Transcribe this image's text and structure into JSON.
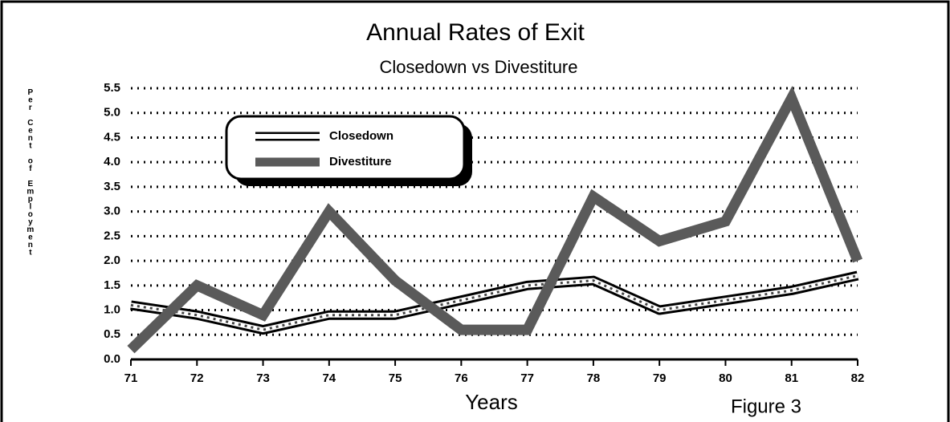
{
  "chart_data": {
    "type": "line",
    "title": "Annual Rates of Exit",
    "subtitle": "Closedown vs Divestiture",
    "y_label": "Per Cent of Employment",
    "x_label": "Years",
    "annotation": "Figure 3",
    "categories": [
      "71",
      "72",
      "73",
      "74",
      "75",
      "76",
      "77",
      "78",
      "79",
      "80",
      "81",
      "82"
    ],
    "series": [
      {
        "name": "Closedown",
        "color": "#ffffff",
        "values": [
          1.1,
          0.9,
          0.6,
          0.9,
          0.9,
          1.2,
          1.5,
          1.6,
          1.0,
          1.2,
          1.4,
          1.7
        ]
      },
      {
        "name": "Divestiture",
        "color": "#5a5a5a",
        "values": [
          0.2,
          1.5,
          0.9,
          3.0,
          1.6,
          0.6,
          0.6,
          3.3,
          2.4,
          2.8,
          5.3,
          2.0
        ]
      }
    ],
    "ylim": [
      0,
      5.5
    ],
    "yticks": [
      {
        "value": 0,
        "label": "0.0"
      },
      0.5,
      {
        "value": 1,
        "label": "1.0"
      },
      1.5,
      {
        "value": 2,
        "label": "2.0"
      },
      2.5,
      {
        "value": 3,
        "label": "3.0"
      },
      3.5,
      {
        "value": 4,
        "label": "4.0"
      },
      4.5,
      {
        "value": 5,
        "label": "5.0"
      },
      5.5
    ],
    "grid": true
  }
}
